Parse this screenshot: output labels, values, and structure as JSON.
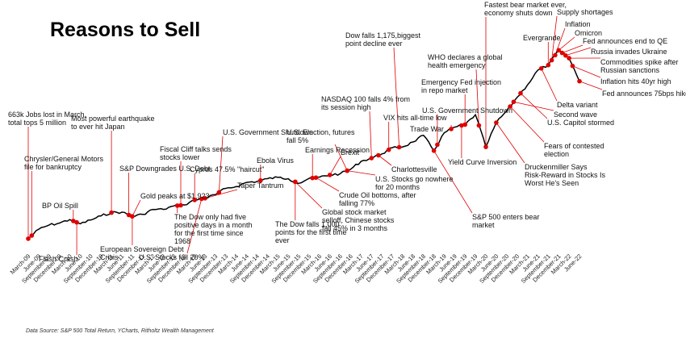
{
  "chart_data": {
    "type": "line",
    "title": "Reasons to Sell",
    "source": "Data Source: S&P 500 Total Return, YCharts, Ritholtz Wealth Management",
    "x_tick_labels": [
      "March-09",
      "June-09",
      "September-09",
      "December-09",
      "March-10",
      "June-10",
      "September-10",
      "December-10",
      "March-11",
      "June-11",
      "September-11",
      "December-11",
      "March-12",
      "June-12",
      "September-12",
      "December-12",
      "March-13",
      "June-13",
      "September-13",
      "December-13",
      "March-14",
      "June-14",
      "September-14",
      "December-14",
      "March-15",
      "June-15",
      "September-15",
      "December-15",
      "March-16",
      "June-16",
      "September-16",
      "December-16",
      "March-17",
      "June-17",
      "September-17",
      "December-17",
      "March-18",
      "June-18",
      "September-18",
      "December-18",
      "March-19",
      "June-19",
      "September-19",
      "December-19",
      "March-20",
      "June-20",
      "September-20",
      "December-20",
      "March-21",
      "June-21",
      "September-21",
      "December-21",
      "March-22",
      "June-22"
    ],
    "series": [
      {
        "x": [
          "March-09",
          "June-09",
          "September-09",
          "December-09",
          "March-10",
          "June-10",
          "September-10",
          "December-10",
          "March-11",
          "June-11",
          "September-11",
          "December-11",
          "March-12",
          "June-12",
          "September-12",
          "December-12",
          "March-13",
          "June-13",
          "September-13",
          "December-13",
          "March-14",
          "June-14",
          "September-14",
          "December-14",
          "March-15",
          "June-15",
          "September-15",
          "December-15",
          "March-16",
          "June-16",
          "September-16",
          "December-16",
          "March-17",
          "June-17",
          "September-17",
          "December-17",
          "March-18",
          "June-18",
          "September-18",
          "December-18",
          "March-19",
          "June-19",
          "September-19",
          "December-19",
          "March-20",
          "June-20",
          "September-20",
          "December-20",
          "March-21",
          "June-21",
          "September-21",
          "December-21",
          "March-22",
          "June-22"
        ],
        "values": [
          100,
          138,
          155,
          163,
          177,
          160,
          175,
          192,
          205,
          207,
          190,
          198,
          218,
          218,
          232,
          236,
          256,
          263,
          278,
          303,
          310,
          327,
          331,
          342,
          347,
          342,
          323,
          343,
          348,
          357,
          362,
          380,
          412,
          425,
          442,
          467,
          470,
          490,
          517,
          455,
          527,
          550,
          560,
          600,
          470,
          568,
          615,
          670,
          720,
          780,
          800,
          860,
          828,
          735
        ]
      }
    ],
    "ylim": [
      80,
      900
    ],
    "grid": false,
    "legend": "none",
    "line_color": "#000000",
    "event_color": "#e00000",
    "annotations": [
      {
        "label": "663k Jobs lost in March, total tops 5 million",
        "date": "March-09"
      },
      {
        "label": "Chrysler/General Motors file for bankruptcy",
        "date": "April-09"
      },
      {
        "label": "BP Oil Spill",
        "date": "April-10"
      },
      {
        "label": "Flash Crash",
        "date": "May-10"
      },
      {
        "label": "Most powerful earthquake to ever hit Japan",
        "date": "March-11"
      },
      {
        "label": "S&P Downgrades U.S. Debt",
        "date": "August-11"
      },
      {
        "label": "European Sovereign Debt Crisis",
        "date": "September-11"
      },
      {
        "label": "Gold peaks at $1,923",
        "date": "September-11"
      },
      {
        "label": "Fiscal Cliff talks sends stocks lower",
        "date": "November-12"
      },
      {
        "label": "The Dow only had five positive days in a month for the first time since 1968",
        "date": "October-12"
      },
      {
        "label": "Cyprus 47.5% \"haircut\"",
        "date": "March-13"
      },
      {
        "label": "U.S. Stocks fall 20%",
        "date": "May-13"
      },
      {
        "label": "U.S. Government Shutdown",
        "date": "October-13"
      },
      {
        "label": "Taper Tantrum",
        "date": "June-13"
      },
      {
        "label": "Ebola Virus",
        "date": "October-14"
      },
      {
        "label": "The Dow falls 1,000 points for the first time ever",
        "date": "August-15"
      },
      {
        "label": "U.S. Election, futures fall 5%",
        "date": "November-16"
      },
      {
        "label": "Earnings Recession",
        "date": "January-16"
      },
      {
        "label": "Global stock market selloff, Chinese stocks fall 45% in 3 months",
        "date": "August-15"
      },
      {
        "label": "Crude Oil bottoms, after falling 77%",
        "date": "February-16"
      },
      {
        "label": "Brexit",
        "date": "June-16"
      },
      {
        "label": "NASDAQ 100 falls 4% from its session high",
        "date": "June-17"
      },
      {
        "label": "U.S. Stocks go nowhere for 20 months",
        "date": "November-16"
      },
      {
        "label": "VIX hits all-time low",
        "date": "November-17"
      },
      {
        "label": "Charlottesville",
        "date": "August-17"
      },
      {
        "label": "Dow falls 1,175,biggest point decline ever",
        "date": "February-18"
      },
      {
        "label": "S&P 500 enters bear market",
        "date": "December-18"
      },
      {
        "label": "Trade War",
        "date": "May-19"
      },
      {
        "label": "Yield Curve Inversion",
        "date": "August-19"
      },
      {
        "label": "U.S. Government Shutdown",
        "date": "January-19"
      },
      {
        "label": "Emergency Fed injection in repo market",
        "date": "September-19"
      },
      {
        "label": "WHO declares a global health emergency",
        "date": "January-20"
      },
      {
        "label": "Fastest bear market ever, economy shuts down",
        "date": "March-20"
      },
      {
        "label": "Fears of contested election",
        "date": "October-20"
      },
      {
        "label": "Druckenmiller Says Risk-Reward in Stocks Is Worst He's Seen",
        "date": "June-20"
      },
      {
        "label": "U.S. Capitol stormed",
        "date": "January-21"
      },
      {
        "label": "Second wave",
        "date": "November-20"
      },
      {
        "label": "Delta variant",
        "date": "July-21"
      },
      {
        "label": "Evergrande",
        "date": "September-21"
      },
      {
        "label": "Supply shortages",
        "date": "October-21"
      },
      {
        "label": "Inflation",
        "date": "November-21"
      },
      {
        "label": "Omicron",
        "date": "December-21"
      },
      {
        "label": "Fed announces end to QE",
        "date": "January-22"
      },
      {
        "label": "Russia invades Ukraine",
        "date": "February-22"
      },
      {
        "label": "Commodities spike after Russian sanctions",
        "date": "March-22"
      },
      {
        "label": "Inflation hits 40yr high",
        "date": "April-22"
      },
      {
        "label": "Fed announces 75bps hike",
        "date": "June-22"
      }
    ]
  }
}
